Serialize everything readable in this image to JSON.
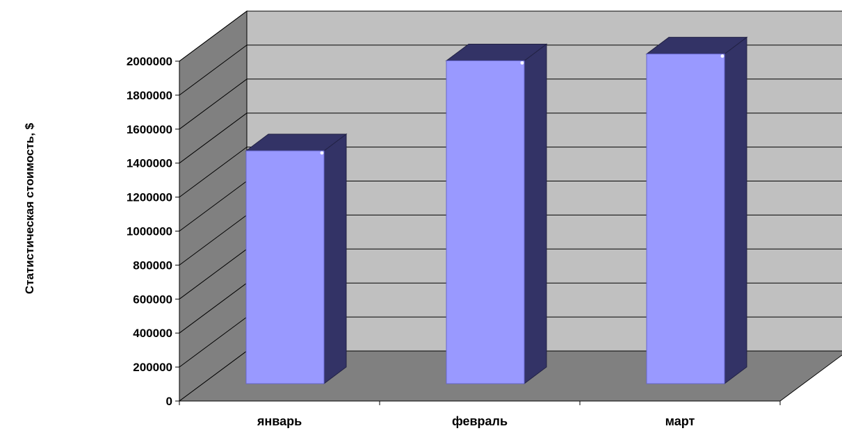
{
  "chart_data": {
    "type": "bar",
    "style": "3d-column",
    "categories": [
      "январь",
      "февраль",
      "март"
    ],
    "values": [
      1370000,
      1900000,
      1940000
    ],
    "ylabel": "Статистическая стоимость, $",
    "xlabel": "",
    "ylim": [
      0,
      2000000
    ],
    "yticks": [
      0,
      200000,
      400000,
      600000,
      800000,
      1000000,
      1200000,
      1400000,
      1600000,
      1800000,
      2000000
    ],
    "grid": true,
    "legend": "none"
  },
  "colors": {
    "bar_front": "#9999ff",
    "bar_side": "#333366",
    "bar_top": "#333366",
    "back_wall": "#c0c0c0",
    "side_wall": "#808080",
    "floor": "#808080",
    "gridline": "#000000"
  }
}
